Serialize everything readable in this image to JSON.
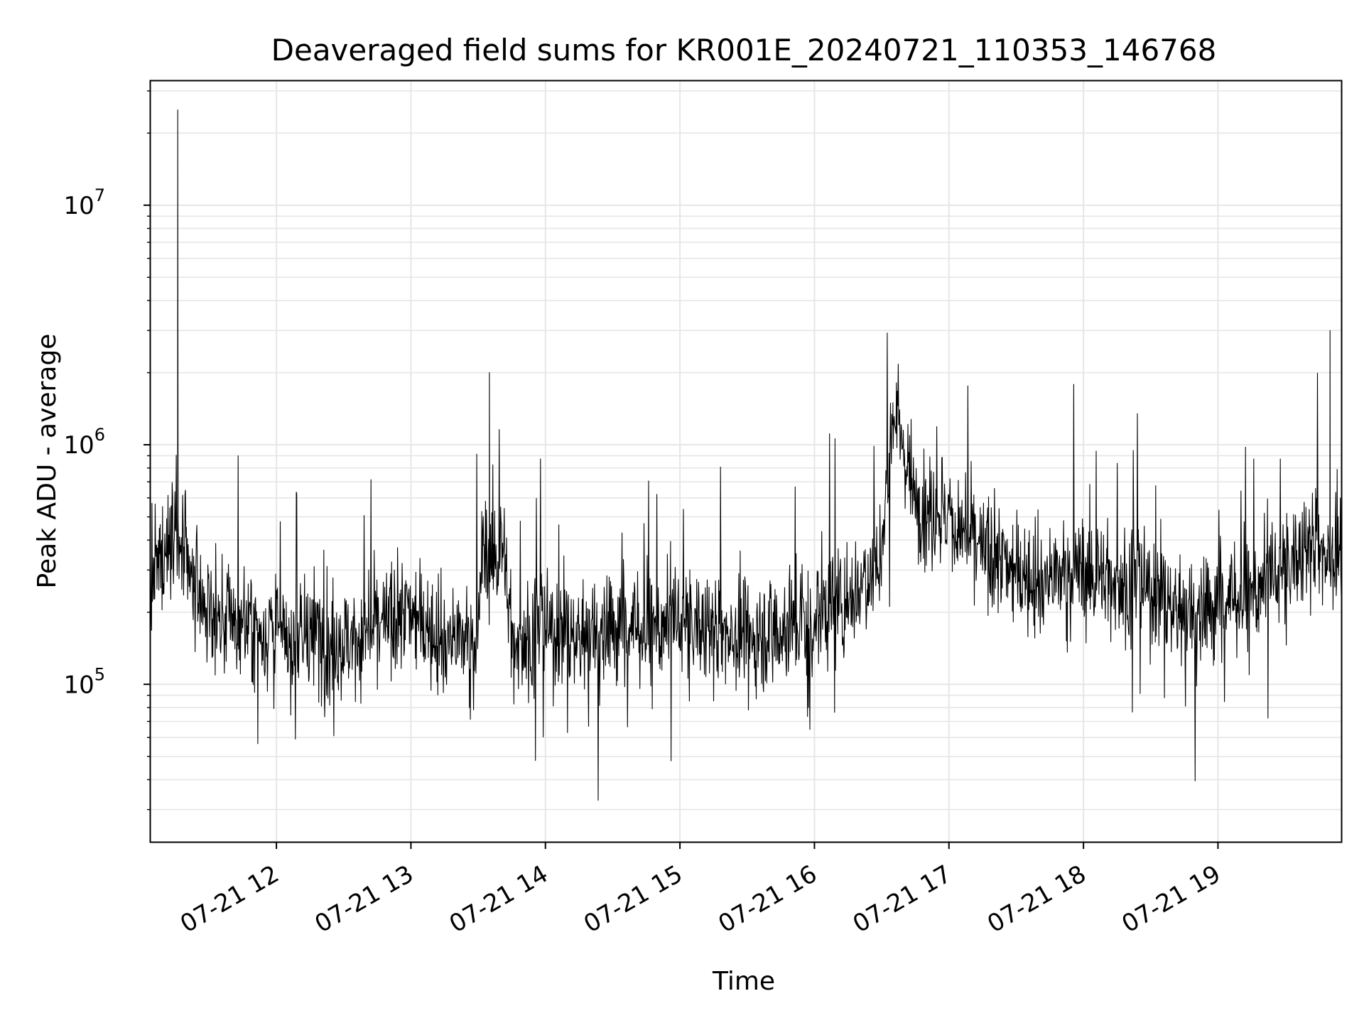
{
  "chart_data": {
    "type": "line",
    "title": "Deaveraged field sums for KR001E_20240721_110353_146768",
    "xlabel": "Time",
    "ylabel": "Peak ADU - average",
    "y_scale": "log",
    "ylim": [
      22000,
      33000000
    ],
    "xlim": [
      "2024-07-21 11:03:53",
      "2024-07-21 19:55:00"
    ],
    "x_ticks": [
      "07-21 12",
      "07-21 13",
      "07-21 14",
      "07-21 15",
      "07-21 16",
      "07-21 17",
      "07-21 18",
      "07-21 19"
    ],
    "y_ticks": [
      {
        "base": "10",
        "exp": "5",
        "value": 100000
      },
      {
        "base": "10",
        "exp": "6",
        "value": 1000000
      },
      {
        "base": "10",
        "exp": "7",
        "value": 10000000
      }
    ],
    "grid": true,
    "line_color": "#000000",
    "grid_color": "#e6e6e6",
    "series": [
      {
        "x": [
          "2024-07-21 11:04",
          "2024-07-21 11:08",
          "2024-07-21 11:13",
          "2024-07-21 11:15",
          "2024-07-21 11:16",
          "2024-07-21 11:20",
          "2024-07-21 11:30",
          "2024-07-21 11:45",
          "2024-07-21 12:00",
          "2024-07-21 12:10",
          "2024-07-21 12:15",
          "2024-07-21 12:30",
          "2024-07-21 12:45",
          "2024-07-21 13:00",
          "2024-07-21 13:15",
          "2024-07-21 13:30",
          "2024-07-21 13:35",
          "2024-07-21 13:45",
          "2024-07-21 14:00",
          "2024-07-21 14:15",
          "2024-07-21 14:30",
          "2024-07-21 14:45",
          "2024-07-21 15:00",
          "2024-07-21 15:15",
          "2024-07-21 15:30",
          "2024-07-21 15:45",
          "2024-07-21 16:00",
          "2024-07-21 16:15",
          "2024-07-21 16:30",
          "2024-07-21 16:35",
          "2024-07-21 16:45",
          "2024-07-21 17:00",
          "2024-07-21 17:15",
          "2024-07-21 17:30",
          "2024-07-21 17:45",
          "2024-07-21 18:00",
          "2024-07-21 18:15",
          "2024-07-21 18:30",
          "2024-07-21 18:45",
          "2024-07-21 19:00",
          "2024-07-21 19:15",
          "2024-07-21 19:30",
          "2024-07-21 19:45",
          "2024-07-21 19:50",
          "2024-07-21 19:55"
        ],
        "y": [
          250000,
          320000,
          400000,
          550000,
          25000000,
          280000,
          200000,
          180000,
          160000,
          150000,
          160000,
          150000,
          170000,
          200000,
          160000,
          150000,
          2000000,
          150000,
          170000,
          160000,
          180000,
          170000,
          180000,
          170000,
          160000,
          170000,
          190000,
          230000,
          350000,
          1500000,
          600000,
          500000,
          350000,
          300000,
          280000,
          300000,
          270000,
          250000,
          200000,
          220000,
          240000,
          300000,
          420000,
          3000000,
          550000
        ]
      }
    ]
  }
}
